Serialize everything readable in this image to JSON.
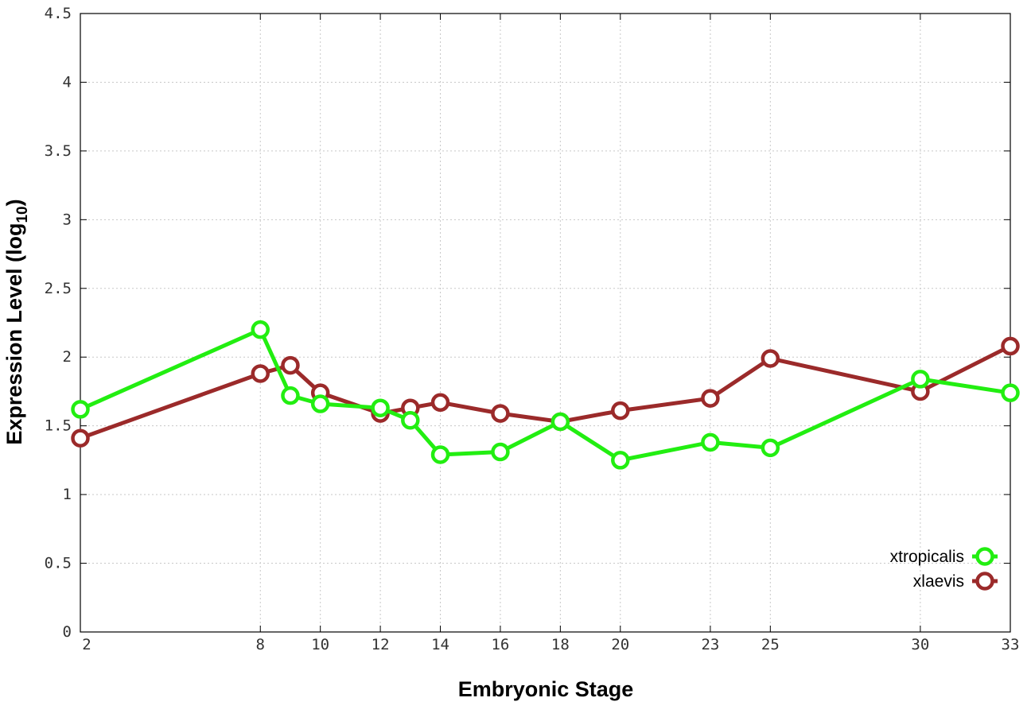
{
  "chart_data": {
    "type": "line",
    "xlabel": "Embryonic Stage",
    "ylabel_main": "Expression Level (log",
    "ylabel_sub": "10",
    "ylabel_close": ")",
    "xlim": [
      2,
      33
    ],
    "ylim": [
      0,
      4.5
    ],
    "x_ticks": [
      2,
      8,
      10,
      12,
      14,
      16,
      18,
      20,
      23,
      25,
      30,
      33
    ],
    "x_tick_labels": [
      "2",
      "8",
      "10",
      "12",
      "14",
      "16",
      "18",
      "20",
      "23",
      "25",
      "30",
      "33"
    ],
    "y_ticks": [
      0,
      0.5,
      1,
      1.5,
      2,
      2.5,
      3,
      3.5,
      4,
      4.5
    ],
    "y_tick_labels": [
      "0",
      "0.5",
      "1",
      "1.5",
      "2",
      "2.5",
      "3",
      "3.5",
      "4",
      "4.5"
    ],
    "x_points": [
      2,
      8,
      9,
      10,
      12,
      13,
      14,
      16,
      18,
      20,
      23,
      25,
      30,
      33
    ],
    "grid": true,
    "legend_position": "bottom-right",
    "series": [
      {
        "name": "xtropicalis",
        "color": "#22ee11",
        "values": [
          1.62,
          2.2,
          1.72,
          1.66,
          1.63,
          1.54,
          1.29,
          1.31,
          1.53,
          1.25,
          1.38,
          1.34,
          1.84,
          1.74
        ]
      },
      {
        "name": "xlaevis",
        "color": "#9b2a2a",
        "values": [
          1.41,
          1.88,
          1.94,
          1.74,
          1.59,
          1.63,
          1.67,
          1.59,
          1.53,
          1.61,
          1.7,
          1.99,
          1.75,
          2.08
        ]
      }
    ]
  }
}
